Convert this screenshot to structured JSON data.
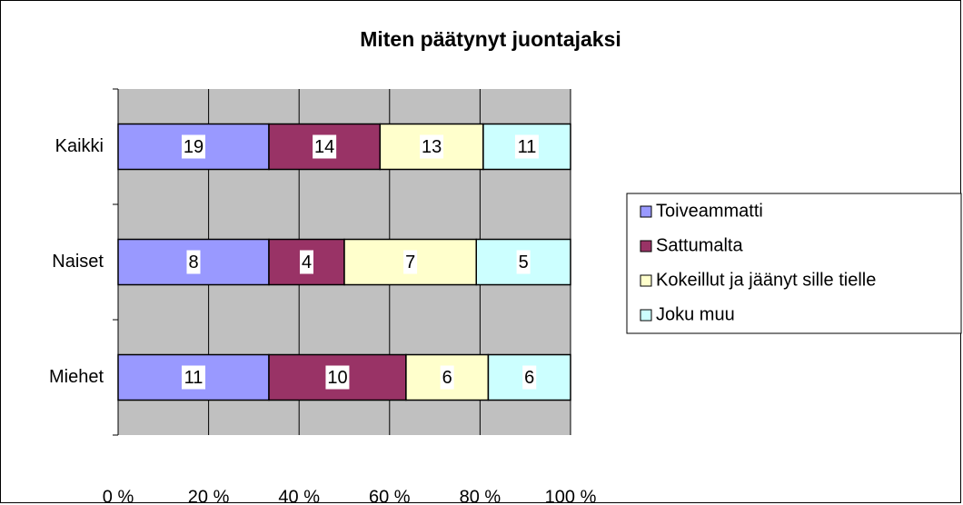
{
  "chart_data": {
    "type": "bar",
    "orientation": "horizontal",
    "stacked": "percent",
    "title": "Miten päätynyt juontajaksi",
    "categories": [
      "Kaikki",
      "Naiset",
      "Miehet"
    ],
    "series": [
      {
        "name": "Toiveammatti",
        "color": "#9999ff",
        "values": [
          19,
          8,
          11
        ]
      },
      {
        "name": "Sattumalta",
        "color": "#993366",
        "values": [
          14,
          4,
          10
        ]
      },
      {
        "name": "Kokeillut ja jäänyt sille tielle",
        "color": "#ffffcc",
        "values": [
          13,
          7,
          6
        ]
      },
      {
        "name": "Joku muu",
        "color": "#ccffff",
        "values": [
          11,
          5,
          6
        ]
      }
    ],
    "xlim": [
      0,
      100
    ],
    "xticks": [
      {
        "value": 0,
        "label": "0 %"
      },
      {
        "value": 20,
        "label": "20 %"
      },
      {
        "value": 40,
        "label": "40 %"
      },
      {
        "value": 60,
        "label": "60 %"
      },
      {
        "value": 80,
        "label": "80 %"
      },
      {
        "value": 100,
        "label": "100 %"
      }
    ],
    "grid": true,
    "legend": "right"
  }
}
